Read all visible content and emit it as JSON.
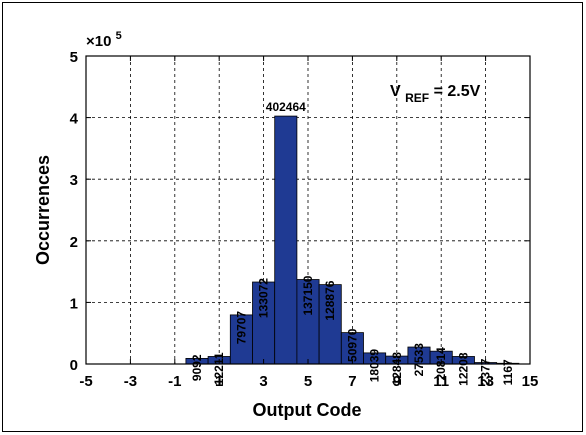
{
  "chart_data": {
    "type": "bar",
    "title": "",
    "xlabel": "Output Code",
    "ylabel": "Occurrences",
    "y_multiplier_label": "×10",
    "y_multiplier_exponent": "5",
    "annotation": {
      "main": "V",
      "sub": "REF",
      "rest": " = 2.5V"
    },
    "xlim": [
      -5,
      15
    ],
    "ylim": [
      0,
      500000
    ],
    "x_ticks": [
      -5,
      -3,
      -1,
      1,
      3,
      5,
      7,
      9,
      11,
      13,
      15
    ],
    "y_ticks": [
      0,
      1,
      2,
      3,
      4,
      5
    ],
    "y_tick_scale": 100000,
    "grid": true,
    "bar_color": "#1f3a93",
    "categories": [
      0,
      1,
      2,
      3,
      4,
      5,
      6,
      7,
      8,
      9,
      10,
      11,
      12,
      13,
      14
    ],
    "values": [
      9092,
      12211,
      79707,
      133072,
      402464,
      137150,
      128876,
      50970,
      18039,
      12848,
      27533,
      20814,
      12208,
      2377,
      1167
    ],
    "value_labels": [
      "9092",
      "12211",
      "79707",
      "133072",
      "402464",
      "137150",
      "128876",
      "50970",
      "18039",
      "12848",
      "27533",
      "20814",
      "12208",
      "2377",
      "1167"
    ]
  }
}
